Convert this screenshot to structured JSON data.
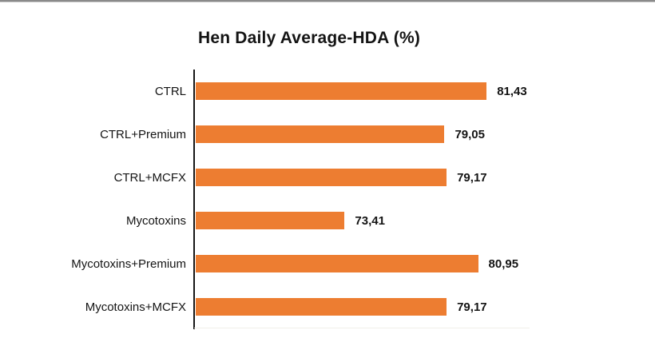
{
  "chart_data": {
    "type": "bar",
    "orientation": "horizontal",
    "title": "Hen Daily Average-HDA (%)",
    "categories": [
      "CTRL",
      "CTRL+Premium",
      "CTRL+MCFX",
      "Mycotoxins",
      "Mycotoxins+Premium",
      "Mycotoxins+MCFX"
    ],
    "values": [
      81.43,
      79.05,
      79.17,
      73.41,
      80.95,
      79.17
    ],
    "value_labels": [
      "81,43",
      "79,05",
      "79,17",
      "73,41",
      "80,95",
      "79,17"
    ],
    "xlim": [
      65,
      83
    ],
    "xlabel": "",
    "ylabel": "",
    "grid": false,
    "legend": false,
    "data_labels_position": "outside-end",
    "bar_color": "#ED7D31",
    "axis_color": "#171717",
    "text_color": "#141414",
    "top_rule_color": "#8a8a8a"
  }
}
